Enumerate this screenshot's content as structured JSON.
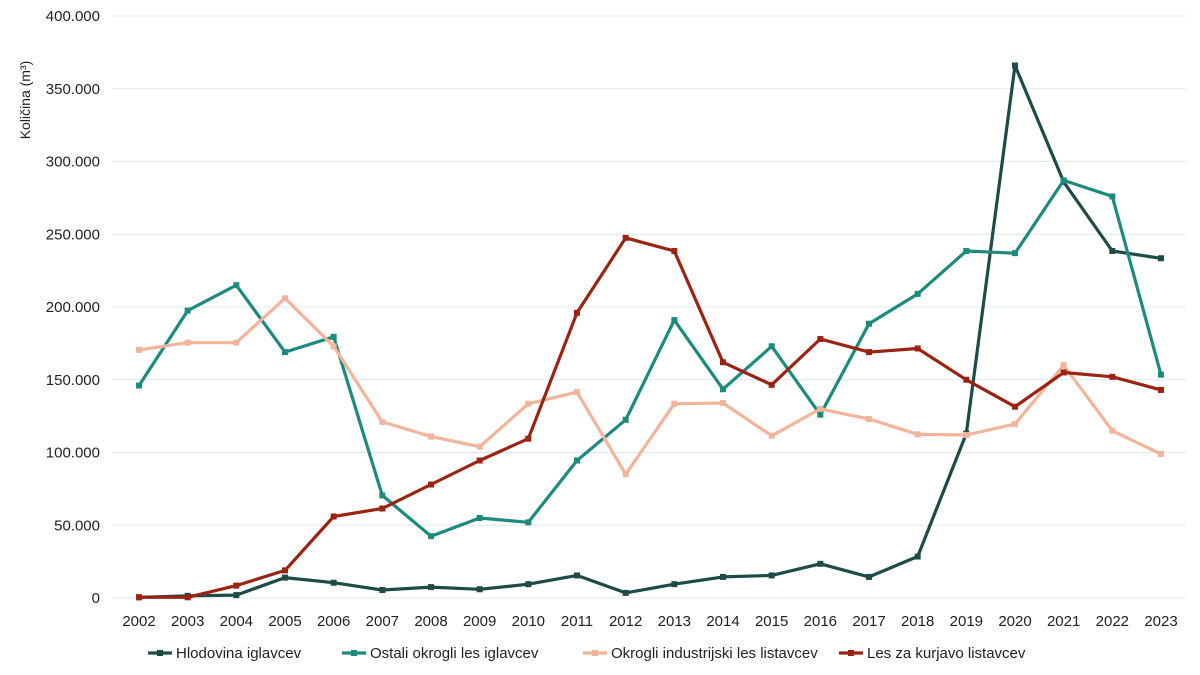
{
  "chart_data": {
    "type": "line",
    "ylabel": "Količina (m³)",
    "ylim": [
      0,
      400000
    ],
    "yticks": [
      "0",
      "50.000",
      "100.000",
      "150.000",
      "200.000",
      "250.000",
      "300.000",
      "350.000",
      "400.000"
    ],
    "grid": "horizontal",
    "legend_position": "bottom",
    "categories": [
      "2002",
      "2003",
      "2004",
      "2005",
      "2006",
      "2007",
      "2008",
      "2009",
      "2010",
      "2011",
      "2012",
      "2013",
      "2014",
      "2015",
      "2016",
      "2017",
      "2018",
      "2019",
      "2020",
      "2021",
      "2022",
      "2023"
    ],
    "series": [
      {
        "name": "Hlodovina iglavcev",
        "color": "#1e4a48",
        "values": [
          500,
          1500,
          2000,
          14000,
          10500,
          5500,
          7500,
          6000,
          9500,
          15500,
          3500,
          9500,
          14500,
          15500,
          23500,
          14500,
          28500,
          113000,
          366000,
          286000,
          238500,
          233500
        ]
      },
      {
        "name": "Ostali okrogli les iglavcev",
        "color": "#1c8a7d",
        "values": [
          146000,
          197500,
          215000,
          169000,
          179500,
          70500,
          42500,
          55000,
          52000,
          94500,
          122500,
          191000,
          143500,
          173000,
          126000,
          188500,
          209000,
          238500,
          237000,
          287000,
          276000,
          153500
        ]
      },
      {
        "name": "Okrogli industrijski les listavcev",
        "color": "#f2b49a",
        "values": [
          170500,
          175500,
          175500,
          206000,
          173000,
          121000,
          111000,
          104000,
          133500,
          141500,
          85000,
          133500,
          134000,
          111500,
          130000,
          123000,
          112500,
          112000,
          119500,
          160000,
          115000,
          99000
        ]
      },
      {
        "name": "Les za kurjavo listavcev",
        "color": "#9b2312",
        "values": [
          500,
          500,
          8500,
          19000,
          56000,
          61500,
          78000,
          94500,
          109500,
          196000,
          247500,
          238500,
          162000,
          146500,
          178000,
          169000,
          171500,
          150000,
          131500,
          155000,
          152000,
          143000
        ]
      }
    ]
  }
}
